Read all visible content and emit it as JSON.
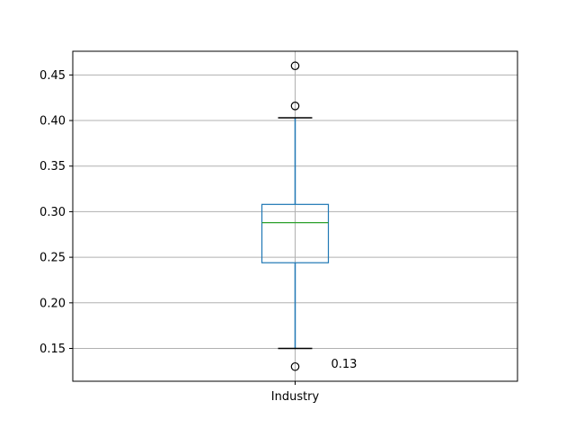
{
  "chart_data": {
    "type": "box",
    "title": "",
    "xlabel": "",
    "ylabel": "",
    "categories": [
      "Industry"
    ],
    "ylim": [
      0.114,
      0.476
    ],
    "yticks": [
      0.15,
      0.2,
      0.25,
      0.3,
      0.35,
      0.4,
      0.45
    ],
    "ytick_labels": [
      "0.15",
      "0.20",
      "0.25",
      "0.30",
      "0.35",
      "0.40",
      "0.45"
    ],
    "grid": true,
    "boxes": [
      {
        "category": "Industry",
        "whisker_low": 0.15,
        "q1": 0.244,
        "median": 0.288,
        "q3": 0.308,
        "whisker_high": 0.403,
        "outliers": [
          0.13,
          0.416,
          0.46
        ]
      }
    ],
    "annotations": [
      {
        "text": "0.13",
        "x": "Industry",
        "y": 0.13
      }
    ],
    "colors": {
      "box": "#1f77b4",
      "median": "#2ca02c",
      "grid": "#b0b0b0",
      "axes": "#000000"
    }
  }
}
